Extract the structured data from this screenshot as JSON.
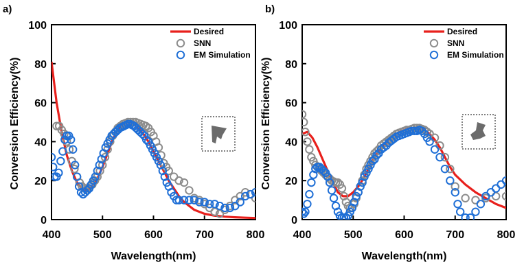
{
  "colors": {
    "desired": "#e8201c",
    "snn": "#8c8c8c",
    "em": "#1f6fd6"
  },
  "chart_data": [
    {
      "panel": "a)",
      "type": "scatter",
      "xlabel": "Wavelength(nm)",
      "ylabel": "Conversion Efficiency(%)",
      "xlim": [
        400,
        800
      ],
      "ylim": [
        0,
        100
      ],
      "xticks": [
        400,
        500,
        600,
        700,
        800
      ],
      "yticks": [
        0,
        20,
        40,
        60,
        80,
        100
      ],
      "legend": [
        "Desired",
        "SNN",
        "EM Simulation"
      ],
      "legend_position": "top-right",
      "desired": {
        "x": [
          400,
          410,
          420,
          430,
          440,
          450,
          460,
          470,
          480,
          490,
          500,
          510,
          520,
          530,
          540,
          550,
          560,
          570,
          580,
          590,
          600,
          610,
          620,
          630,
          640,
          650,
          660,
          670,
          680,
          690,
          700,
          720,
          740,
          760,
          780,
          800
        ],
        "y": [
          81,
          60,
          45,
          33,
          25,
          19,
          16,
          15,
          17,
          21,
          27,
          34,
          41,
          46,
          49,
          50,
          49,
          47,
          44,
          40,
          35,
          30,
          25,
          20,
          16,
          12,
          9,
          7,
          5,
          4,
          3,
          2,
          1.5,
          1.2,
          1,
          0.8
        ]
      },
      "snn": {
        "x": [
          410,
          415,
          420,
          425,
          430,
          435,
          440,
          445,
          450,
          455,
          460,
          465,
          470,
          475,
          480,
          485,
          490,
          495,
          500,
          505,
          510,
          515,
          520,
          525,
          530,
          535,
          540,
          545,
          550,
          555,
          560,
          565,
          570,
          575,
          580,
          585,
          590,
          595,
          600,
          605,
          610,
          615,
          620,
          625,
          630,
          640,
          650,
          660,
          670,
          680,
          690,
          700,
          710,
          720,
          730,
          740,
          750,
          760,
          770,
          780,
          790,
          800
        ],
        "y": [
          48,
          48,
          46,
          44,
          40,
          36,
          30,
          26,
          22,
          19,
          17,
          16,
          16,
          17,
          18,
          20,
          22,
          25,
          28,
          32,
          36,
          40,
          43,
          45,
          47,
          48,
          49,
          49.5,
          50,
          50,
          50,
          50,
          49.5,
          49,
          48.5,
          48,
          47,
          45,
          43,
          40,
          37,
          33,
          29,
          27,
          25,
          22,
          20,
          19,
          15,
          11,
          10,
          8,
          6,
          4,
          3,
          5,
          7,
          10,
          12,
          14,
          13,
          11
        ]
      },
      "em": {
        "x": [
          400,
          403,
          406,
          410,
          414,
          418,
          422,
          426,
          430,
          434,
          438,
          442,
          446,
          450,
          454,
          458,
          462,
          466,
          470,
          474,
          478,
          482,
          486,
          490,
          494,
          498,
          502,
          506,
          510,
          514,
          518,
          522,
          526,
          530,
          534,
          538,
          542,
          546,
          550,
          554,
          558,
          562,
          566,
          570,
          574,
          578,
          582,
          586,
          590,
          594,
          598,
          602,
          606,
          610,
          614,
          618,
          622,
          626,
          630,
          635,
          640,
          645,
          650,
          660,
          670,
          680,
          690,
          700,
          710,
          720,
          730,
          740,
          750,
          760,
          770,
          780,
          790,
          800
        ],
        "y": [
          32,
          27,
          22,
          22,
          24,
          30,
          35,
          41,
          43,
          43,
          41,
          36,
          28,
          22,
          17,
          14,
          13,
          14,
          15,
          16,
          18,
          20,
          22,
          25,
          28,
          31,
          34,
          37,
          39,
          41,
          43,
          44,
          45,
          46,
          47,
          47.5,
          48,
          48.5,
          49,
          49,
          48.5,
          48,
          47,
          46,
          45,
          44,
          43,
          41,
          40,
          38,
          36,
          34,
          32,
          30,
          28,
          25,
          22,
          19,
          17,
          14,
          12,
          10,
          10,
          10,
          10,
          10,
          9,
          9,
          8,
          8,
          7,
          6,
          6,
          7,
          9,
          12,
          13,
          14
        ]
      }
    },
    {
      "panel": "b)",
      "type": "scatter",
      "xlabel": "Wavelength(nm)",
      "ylabel": "Conversion Efficiency(%)",
      "xlim": [
        400,
        800
      ],
      "ylim": [
        0,
        100
      ],
      "xticks": [
        400,
        500,
        600,
        700,
        800
      ],
      "yticks": [
        0,
        20,
        40,
        60,
        80,
        100
      ],
      "legend": [
        "Desired",
        "SNN",
        "EM Simulation"
      ],
      "legend_position": "top-right",
      "desired": {
        "x": [
          400,
          410,
          420,
          430,
          440,
          450,
          460,
          470,
          480,
          490,
          500,
          510,
          520,
          530,
          540,
          550,
          560,
          570,
          580,
          590,
          600,
          610,
          620,
          630,
          640,
          650,
          660,
          670,
          680,
          690,
          700,
          720,
          740,
          760,
          780,
          800
        ],
        "y": [
          44,
          45,
          42,
          37,
          31,
          25,
          19,
          14,
          12,
          12,
          14,
          17,
          21,
          26,
          31,
          35,
          38,
          41,
          43,
          45,
          46,
          47,
          47,
          47,
          46,
          44,
          41,
          37,
          32,
          27,
          23,
          18,
          14,
          11,
          8,
          6
        ]
      },
      "snn": {
        "x": [
          400,
          403,
          406,
          410,
          414,
          418,
          422,
          426,
          430,
          434,
          438,
          442,
          446,
          450,
          454,
          458,
          462,
          466,
          470,
          474,
          478,
          482,
          486,
          490,
          494,
          498,
          502,
          506,
          510,
          514,
          518,
          522,
          526,
          530,
          534,
          538,
          542,
          546,
          550,
          555,
          560,
          565,
          570,
          575,
          580,
          585,
          590,
          595,
          600,
          605,
          610,
          615,
          620,
          625,
          630,
          635,
          640,
          645,
          650,
          660,
          670,
          680,
          690,
          700,
          720,
          740,
          760,
          780,
          800
        ],
        "y": [
          54,
          50,
          45,
          40,
          36,
          32,
          30,
          28,
          27,
          26,
          25,
          24,
          23,
          22,
          21,
          20,
          19.5,
          19,
          19,
          18,
          16,
          12,
          9,
          7,
          6,
          6,
          8,
          11,
          14,
          17,
          20,
          23,
          26,
          28,
          30,
          32,
          34,
          35,
          36,
          38,
          39,
          40,
          41,
          42,
          43,
          44,
          44.5,
          45,
          45.5,
          46,
          46,
          46.5,
          47,
          47,
          47,
          46.5,
          46,
          45,
          44,
          42,
          38,
          32,
          26,
          17,
          11,
          10,
          11,
          12,
          12
        ]
      },
      "em": {
        "x": [
          400,
          403,
          406,
          410,
          414,
          418,
          422,
          426,
          430,
          434,
          438,
          442,
          446,
          450,
          454,
          458,
          462,
          466,
          470,
          474,
          478,
          482,
          486,
          490,
          494,
          498,
          502,
          506,
          510,
          514,
          518,
          522,
          526,
          530,
          534,
          538,
          542,
          546,
          550,
          555,
          560,
          565,
          570,
          575,
          580,
          585,
          590,
          595,
          600,
          605,
          610,
          615,
          620,
          625,
          630,
          635,
          640,
          645,
          650,
          660,
          670,
          680,
          690,
          700,
          705,
          710,
          720,
          730,
          740,
          750,
          760,
          770,
          780,
          790,
          800
        ],
        "y": [
          4,
          3,
          4,
          8,
          13,
          19,
          23,
          26,
          27,
          27,
          26,
          25,
          24,
          22,
          19,
          15,
          11,
          7,
          4,
          2,
          1,
          1,
          1,
          2,
          4,
          6,
          9,
          12,
          14,
          17,
          19,
          22,
          24,
          26,
          28,
          30,
          31,
          33,
          34,
          36,
          37,
          38,
          39.5,
          40.5,
          41.5,
          42.5,
          43,
          43.5,
          44,
          44.5,
          45,
          45.5,
          45.5,
          45.5,
          46,
          45.5,
          44,
          42,
          40,
          36,
          32,
          26,
          20,
          14,
          8,
          4,
          1,
          1,
          4,
          8,
          12,
          14,
          16,
          18,
          20
        ]
      }
    }
  ]
}
